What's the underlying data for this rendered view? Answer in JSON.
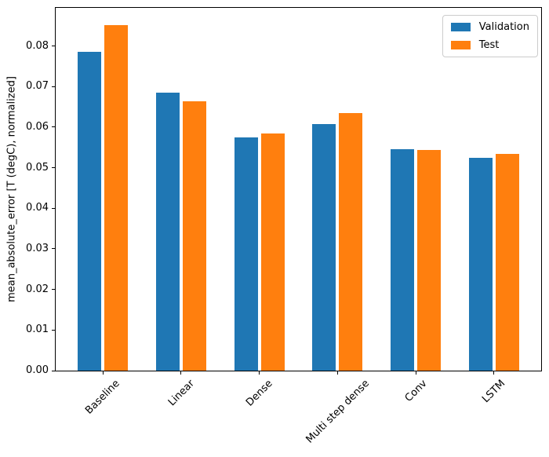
{
  "chart_data": {
    "type": "bar",
    "categories": [
      "Baseline",
      "Linear",
      "Dense",
      "Multi step dense",
      "Conv",
      "LSTM"
    ],
    "series": [
      {
        "name": "Validation",
        "color": "#1f77b4",
        "values": [
          0.0785,
          0.0686,
          0.0574,
          0.0607,
          0.0545,
          0.0524
        ]
      },
      {
        "name": "Test",
        "color": "#ff7f0e",
        "values": [
          0.0852,
          0.0663,
          0.0584,
          0.0634,
          0.0543,
          0.0534
        ]
      }
    ],
    "title": "",
    "xlabel": "",
    "ylabel": "mean_absolute_error [T (degC), normalized]",
    "ylim": [
      0,
      0.0894
    ],
    "x_range_units": [
      -0.602,
      5.602
    ],
    "bar_width_units": 0.3,
    "bar_offset_units": 0.17,
    "yticks": [
      "0.00",
      "0.01",
      "0.02",
      "0.03",
      "0.04",
      "0.05",
      "0.06",
      "0.07",
      "0.08"
    ],
    "x_tick_rotation": 45,
    "grid": false,
    "legend_position": "upper right"
  },
  "colors": {
    "axis": "#000000",
    "text": "#000000",
    "background": "#ffffff",
    "legend_border": "#cccccc"
  }
}
